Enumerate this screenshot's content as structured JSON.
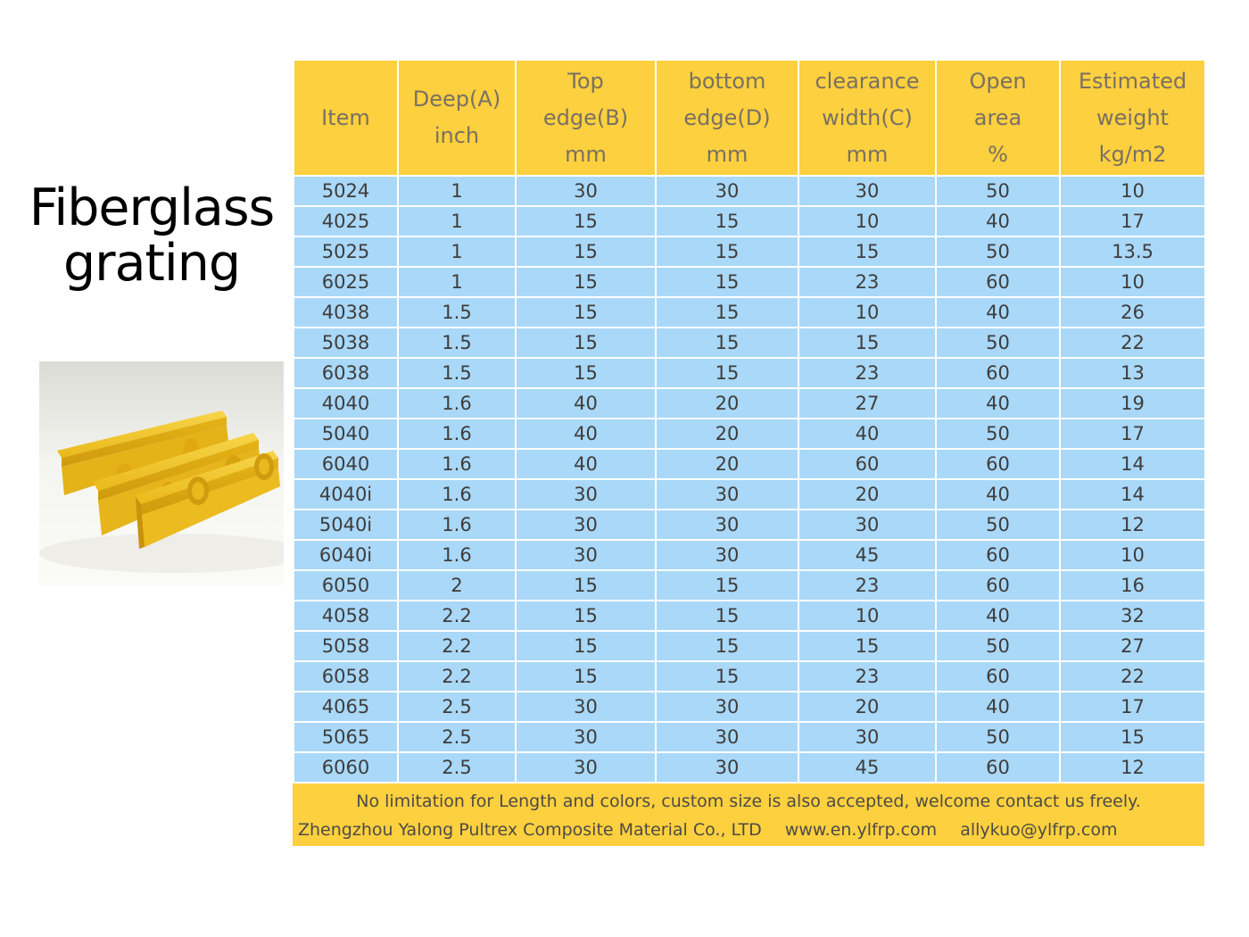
{
  "title": {
    "line1": "Fiberglass",
    "line2": "grating"
  },
  "table": {
    "headers": [
      [
        "Item"
      ],
      [
        "Deep(A)",
        "inch"
      ],
      [
        "Top",
        "edge(B)",
        "mm"
      ],
      [
        "bottom",
        "edge(D)",
        "mm"
      ],
      [
        "clearance",
        "width(C)",
        "mm"
      ],
      [
        "Open",
        "area",
        "%"
      ],
      [
        "Estimated",
        "weight",
        "kg/m2"
      ]
    ],
    "rows": [
      [
        "5024",
        "1",
        "30",
        "30",
        "30",
        "50",
        "10"
      ],
      [
        "4025",
        "1",
        "15",
        "15",
        "10",
        "40",
        "17"
      ],
      [
        "5025",
        "1",
        "15",
        "15",
        "15",
        "50",
        "13.5"
      ],
      [
        "6025",
        "1",
        "15",
        "15",
        "23",
        "60",
        "10"
      ],
      [
        "4038",
        "1.5",
        "15",
        "15",
        "10",
        "40",
        "26"
      ],
      [
        "5038",
        "1.5",
        "15",
        "15",
        "15",
        "50",
        "22"
      ],
      [
        "6038",
        "1.5",
        "15",
        "15",
        "23",
        "60",
        "13"
      ],
      [
        "4040",
        "1.6",
        "40",
        "20",
        "27",
        "40",
        "19"
      ],
      [
        "5040",
        "1.6",
        "40",
        "20",
        "40",
        "50",
        "17"
      ],
      [
        "6040",
        "1.6",
        "40",
        "20",
        "60",
        "60",
        "14"
      ],
      [
        "4040i",
        "1.6",
        "30",
        "30",
        "20",
        "40",
        "14"
      ],
      [
        "5040i",
        "1.6",
        "30",
        "30",
        "30",
        "50",
        "12"
      ],
      [
        "6040i",
        "1.6",
        "30",
        "30",
        "45",
        "60",
        "10"
      ],
      [
        "6050",
        "2",
        "15",
        "15",
        "23",
        "60",
        "16"
      ],
      [
        "4058",
        "2.2",
        "15",
        "15",
        "10",
        "40",
        "32"
      ],
      [
        "5058",
        "2.2",
        "15",
        "15",
        "15",
        "50",
        "27"
      ],
      [
        "6058",
        "2.2",
        "15",
        "15",
        "23",
        "60",
        "22"
      ],
      [
        "4065",
        "2.5",
        "30",
        "30",
        "20",
        "40",
        "17"
      ],
      [
        "5065",
        "2.5",
        "30",
        "30",
        "30",
        "50",
        "15"
      ],
      [
        "6060",
        "2.5",
        "30",
        "30",
        "45",
        "60",
        "12"
      ]
    ]
  },
  "footer": {
    "note": "No limitation for Length and colors, custom size is also accepted, welcome contact us freely.",
    "company": "Zhengzhou Yalong Pultrex Composite Material Co., LTD",
    "website": "www.en.ylfrp.com",
    "email": "allykuo@ylfrp.com"
  },
  "colors": {
    "header_bg": "#fcd03e",
    "row_bg": "#a9d8f8",
    "grating_yellow": "#f2c21a"
  }
}
